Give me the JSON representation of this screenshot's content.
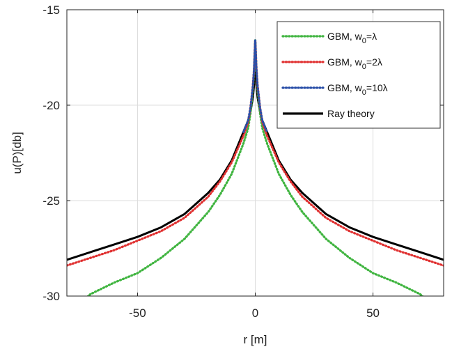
{
  "chart_data": {
    "type": "line",
    "title": "",
    "xlabel": "r [m]",
    "ylabel": "u(P)[db]",
    "xlim": [
      -80,
      80
    ],
    "ylim": [
      -30,
      -15
    ],
    "xticks": [
      -50,
      0,
      50
    ],
    "yticks": [
      -30,
      -25,
      -20,
      -15
    ],
    "grid": true,
    "legend_position": "top-right",
    "series": [
      {
        "name": "GBM, w₀=λ",
        "legend": {
          "base": "GBM, w",
          "sub": "0",
          "tail": "=λ"
        },
        "color": "#3fb43f",
        "style": "dotted",
        "x": [
          -80,
          -70,
          -60,
          -50,
          -40,
          -30,
          -20,
          -15,
          -10,
          -5,
          -3,
          -2,
          -1,
          -0.5,
          0,
          0.5,
          1,
          2,
          3,
          5,
          10,
          15,
          20,
          30,
          40,
          50,
          60,
          70,
          80
        ],
        "y": [
          -31.0,
          -29.9,
          -29.3,
          -28.8,
          -28.0,
          -27.0,
          -25.6,
          -24.7,
          -23.6,
          -22.0,
          -21.2,
          -20.4,
          -19.2,
          -18.2,
          -16.6,
          -18.2,
          -19.2,
          -20.4,
          -21.2,
          -22.0,
          -23.6,
          -24.7,
          -25.6,
          -27.0,
          -28.0,
          -28.8,
          -29.3,
          -29.9,
          -31.0
        ]
      },
      {
        "name": "GBM, w₀=2λ",
        "legend": {
          "base": "GBM, w",
          "sub": "0",
          "tail": "=2λ"
        },
        "color": "#e03030",
        "style": "dotted",
        "x": [
          -80,
          -70,
          -60,
          -50,
          -40,
          -30,
          -20,
          -15,
          -10,
          -5,
          -3,
          -2,
          -1,
          -0.5,
          0,
          0.5,
          1,
          2,
          3,
          5,
          10,
          15,
          20,
          30,
          40,
          50,
          60,
          70,
          80
        ],
        "y": [
          -28.4,
          -28.0,
          -27.6,
          -27.1,
          -26.6,
          -25.9,
          -24.8,
          -24.0,
          -23.0,
          -21.6,
          -20.9,
          -20.1,
          -19.0,
          -18.1,
          -16.6,
          -18.1,
          -19.0,
          -20.1,
          -20.9,
          -21.6,
          -23.0,
          -24.0,
          -24.8,
          -25.9,
          -26.6,
          -27.1,
          -27.6,
          -28.0,
          -28.4
        ]
      },
      {
        "name": "GBM, w₀=10λ",
        "legend": {
          "base": "GBM, w",
          "sub": "0",
          "tail": "=10λ"
        },
        "color": "#2a4fa8",
        "style": "dotted",
        "x": [
          -5,
          -3,
          -2,
          -1,
          -0.5,
          0,
          0.5,
          1,
          2,
          3,
          5
        ],
        "y": [
          -21.4,
          -20.8,
          -20.1,
          -19.0,
          -18.1,
          -16.6,
          -18.1,
          -19.0,
          -20.1,
          -20.8,
          -21.4
        ]
      },
      {
        "name": "Ray theory",
        "legend": {
          "base": "Ray theory",
          "sub": "",
          "tail": ""
        },
        "color": "#000000",
        "style": "solid",
        "x": [
          -80,
          -70,
          -60,
          -50,
          -40,
          -30,
          -20,
          -15,
          -10,
          -5,
          -3,
          -2,
          -1,
          -0.5,
          0,
          0.5,
          1,
          2,
          3,
          5,
          10,
          15,
          20,
          30,
          40,
          50,
          60,
          70,
          80
        ],
        "y": [
          -28.1,
          -27.7,
          -27.3,
          -26.9,
          -26.4,
          -25.7,
          -24.6,
          -23.9,
          -22.9,
          -21.4,
          -20.8,
          -20.3,
          -19.6,
          -18.9,
          -16.6,
          -18.9,
          -19.6,
          -20.3,
          -20.8,
          -21.4,
          -22.9,
          -23.9,
          -24.6,
          -25.7,
          -26.4,
          -26.9,
          -27.3,
          -27.7,
          -28.1
        ]
      }
    ]
  }
}
